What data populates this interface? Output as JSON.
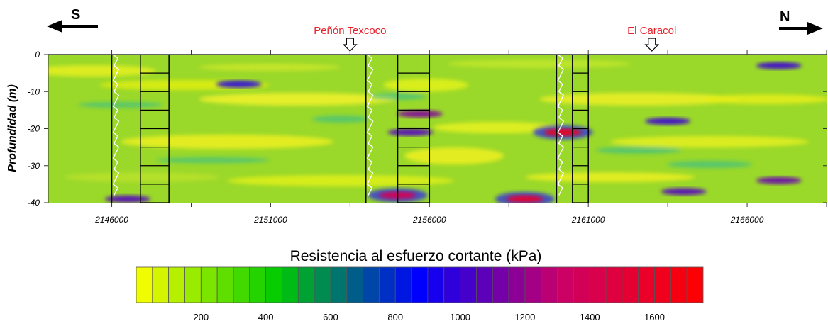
{
  "chart_data": {
    "type": "heatmap",
    "direction": {
      "left": "S",
      "right": "N"
    },
    "locations": [
      {
        "label": "Peñón Texcoco",
        "x": 2153500
      },
      {
        "label": "El Caracol",
        "x": 2163000
      }
    ],
    "ylabel": "Profundidad (m)",
    "y_ticks": [
      0,
      -10,
      -20,
      -30,
      -40
    ],
    "ylim": [
      -40,
      0
    ],
    "x_ticks": [
      2146000,
      2151000,
      2156000,
      2161000,
      2166000
    ],
    "x_tick_labels": [
      "2146000",
      "2151000",
      "2156000",
      "2161000",
      "2166000"
    ],
    "xlim": [
      2144000,
      2168500
    ],
    "boreholes": [
      {
        "x": 2146000,
        "x2": 2147800,
        "top": 0,
        "bottom": -40
      },
      {
        "x": 2154000,
        "x2": 2156000,
        "top": 0,
        "bottom": -40
      },
      {
        "x": 2160000,
        "x2": 2161000,
        "top": 0,
        "bottom": -40
      }
    ],
    "high_zones": [
      {
        "x": 2160200,
        "y": -21,
        "value": 1650
      },
      {
        "x": 2159000,
        "y": -39,
        "value": 1550
      },
      {
        "x": 2155000,
        "y": -38,
        "value": 1400
      }
    ],
    "low_bands": [
      {
        "x": 2146500,
        "y": -39,
        "value": 1050
      },
      {
        "x": 2155700,
        "y": -16,
        "value": 1150
      },
      {
        "x": 2155400,
        "y": -21,
        "value": 1050
      },
      {
        "x": 2163500,
        "y": -18,
        "value": 1000
      },
      {
        "x": 2167000,
        "y": -34,
        "value": 1100
      },
      {
        "x": 2167000,
        "y": -3,
        "value": 1000
      },
      {
        "x": 2150000,
        "y": -8,
        "value": 950
      },
      {
        "x": 2164000,
        "y": -37,
        "value": 1050
      }
    ],
    "colorbar": {
      "title": "Resistencia al esfuerzo cortante (kPa)",
      "tick_labels": [
        "200",
        "400",
        "600",
        "800",
        "1000",
        "1200",
        "1400",
        "1600"
      ],
      "tick_values": [
        200,
        400,
        600,
        800,
        1000,
        1200,
        1400,
        1600
      ],
      "range": [
        0,
        1750
      ],
      "colors": [
        "#ffff00",
        "#00cc00",
        "#0000ff",
        "#cc0066",
        "#ff0000"
      ]
    }
  }
}
